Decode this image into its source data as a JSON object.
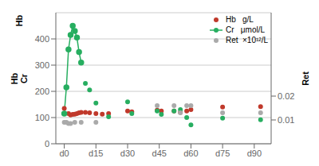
{
  "chart_data": {
    "type": "scatter",
    "xlim": [
      -4,
      98
    ],
    "xticks": [
      {
        "value": 0,
        "label": "d0"
      },
      {
        "value": 15,
        "label": "d15"
      },
      {
        "value": 30,
        "label": "d30"
      },
      {
        "value": 45,
        "label": "d45"
      },
      {
        "value": 60,
        "label": "d60"
      },
      {
        "value": 75,
        "label": "d75"
      },
      {
        "value": 90,
        "label": "d90"
      }
    ],
    "ylim": [
      0,
      500
    ],
    "yticks": [
      0,
      100,
      200,
      300,
      400
    ],
    "y2lim": [
      0,
      0.055
    ],
    "y2ticks": [
      0.01,
      0.02
    ],
    "ylabel": "Hb\nCr",
    "y2label": "Ret",
    "annotations": [
      "Hb"
    ],
    "grid": true,
    "legend": "upper right",
    "series": [
      {
        "name": "Hb   g/L",
        "type": "scatter",
        "marker": "circle",
        "color": "#c0392b",
        "axis": "y",
        "x": [
          0,
          2,
          3,
          4,
          5,
          6,
          7,
          8,
          10,
          12,
          15,
          18,
          21,
          30,
          32,
          44,
          46,
          52,
          55,
          58,
          60,
          75,
          93
        ],
        "values": [
          135,
          115,
          110,
          112,
          113,
          115,
          118,
          120,
          120,
          118,
          115,
          113,
          115,
          125,
          122,
          128,
          125,
          125,
          120,
          125,
          130,
          140,
          142
        ]
      },
      {
        "name": "Cr   μmol/L",
        "type": "line",
        "marker": "circle",
        "color": "#27ae60",
        "axis": "y",
        "x": [
          0,
          1,
          2,
          3,
          4,
          5,
          6,
          7,
          8
        ],
        "values": [
          115,
          215,
          360,
          415,
          450,
          430,
          405,
          350,
          310
        ]
      },
      {
        "name": "Cr   μmol/L",
        "type": "scatter",
        "marker": "circle",
        "color": "#27ae60",
        "axis": "y",
        "x": [
          10,
          12,
          15,
          21,
          30,
          32,
          44,
          46,
          52,
          55,
          58,
          60,
          75,
          93
        ],
        "values": [
          230,
          205,
          155,
          103,
          160,
          115,
          125,
          112,
          125,
          130,
          100,
          72,
          98,
          92
        ]
      },
      {
        "name": "Ret  ×10¹²/L",
        "type": "scatter",
        "marker": "circle",
        "color": "#aaaaaa",
        "axis": "y2",
        "x": [
          0,
          1,
          2,
          3,
          5,
          8,
          15,
          44,
          52,
          55,
          58,
          60,
          75,
          93
        ],
        "values": [
          0.009,
          0.009,
          0.0085,
          0.0085,
          0.009,
          0.009,
          0.009,
          0.016,
          0.016,
          0.013,
          0.016,
          0.016,
          0.013,
          0.013
        ]
      }
    ]
  }
}
